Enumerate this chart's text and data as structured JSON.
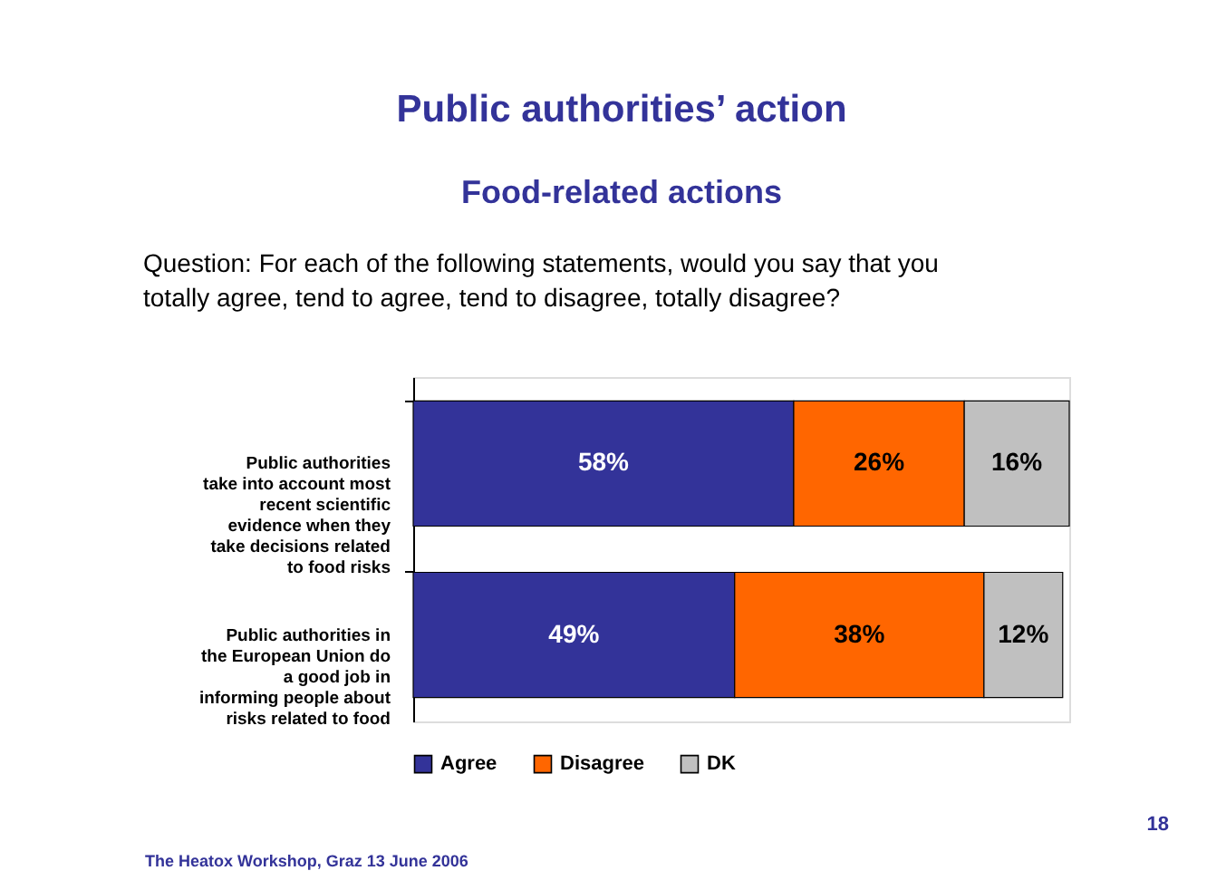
{
  "chart_data": {
    "type": "bar",
    "orientation": "horizontal",
    "stacked": true,
    "title": "Public authorities’ action",
    "subtitle": "Food-related actions",
    "categories": [
      "Public authorities take into account most recent scientific evidence when they take decisions related to food risks",
      "Public authorities in the European Union do a good job in informing people about risks related to food"
    ],
    "series": [
      {
        "name": "Agree",
        "color": "#333399",
        "values": [
          58,
          49
        ],
        "value_labels": [
          "58%",
          "49%"
        ]
      },
      {
        "name": "Disagree",
        "color": "#ff6600",
        "values": [
          26,
          38
        ],
        "value_labels": [
          "26%",
          "38%"
        ]
      },
      {
        "name": "DK",
        "color": "#c0c0c0",
        "values": [
          16,
          12
        ],
        "value_labels": [
          "16%",
          "12%"
        ]
      }
    ],
    "xlim": [
      0,
      100
    ],
    "tick_labels": "y",
    "legend": "bottom",
    "annotations": [
      "Question: For each of the following statements, would you say that you totally agree, tend to agree, tend to disagree, totally disagree?",
      "The Heatox Workshop, Graz 13 June 2006",
      "18"
    ]
  }
}
